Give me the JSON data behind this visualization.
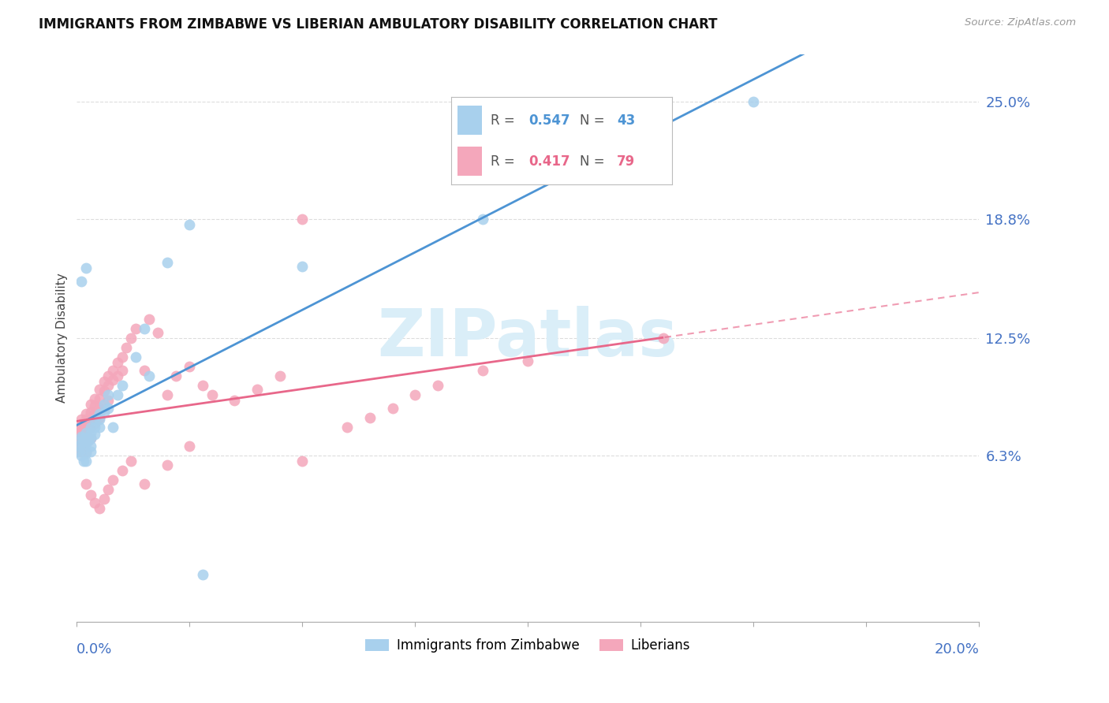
{
  "title": "IMMIGRANTS FROM ZIMBABWE VS LIBERIAN AMBULATORY DISABILITY CORRELATION CHART",
  "source": "Source: ZipAtlas.com",
  "ylabel": "Ambulatory Disability",
  "legend_blue_r": "0.547",
  "legend_blue_n": "43",
  "legend_pink_r": "0.417",
  "legend_pink_n": "79",
  "legend_label_blue": "Immigrants from Zimbabwe",
  "legend_label_pink": "Liberians",
  "blue_color": "#a8d0ed",
  "pink_color": "#f4a7bb",
  "blue_line_color": "#4d94d4",
  "pink_line_color": "#e8678a",
  "watermark_color": "#daeef8",
  "grid_color": "#dddddd",
  "tick_color": "#4472c4",
  "xmin": 0.0,
  "xmax": 0.2,
  "ymin": -0.025,
  "ymax": 0.275,
  "yticks": [
    0.063,
    0.125,
    0.188,
    0.25
  ],
  "ytick_labels": [
    "6.3%",
    "12.5%",
    "18.8%",
    "25.0%"
  ],
  "blue_x": [
    0.0003,
    0.0005,
    0.001,
    0.001,
    0.001,
    0.0012,
    0.0015,
    0.0015,
    0.002,
    0.002,
    0.002,
    0.002,
    0.002,
    0.0025,
    0.003,
    0.003,
    0.003,
    0.003,
    0.003,
    0.004,
    0.004,
    0.004,
    0.005,
    0.005,
    0.005,
    0.006,
    0.006,
    0.007,
    0.007,
    0.008,
    0.009,
    0.01,
    0.013,
    0.015,
    0.016,
    0.02,
    0.025,
    0.028,
    0.002,
    0.001,
    0.05,
    0.09,
    0.15
  ],
  "blue_y": [
    0.065,
    0.068,
    0.073,
    0.07,
    0.063,
    0.072,
    0.067,
    0.06,
    0.075,
    0.072,
    0.069,
    0.064,
    0.06,
    0.071,
    0.078,
    0.075,
    0.072,
    0.068,
    0.065,
    0.082,
    0.078,
    0.074,
    0.085,
    0.082,
    0.078,
    0.09,
    0.086,
    0.095,
    0.088,
    0.078,
    0.095,
    0.1,
    0.115,
    0.13,
    0.105,
    0.165,
    0.185,
    0.0,
    0.162,
    0.155,
    0.163,
    0.188,
    0.25
  ],
  "pink_x": [
    0.0002,
    0.0004,
    0.0005,
    0.0006,
    0.001,
    0.001,
    0.001,
    0.001,
    0.001,
    0.0012,
    0.0015,
    0.002,
    0.002,
    0.002,
    0.002,
    0.002,
    0.002,
    0.0025,
    0.003,
    0.003,
    0.003,
    0.003,
    0.003,
    0.004,
    0.004,
    0.004,
    0.004,
    0.005,
    0.005,
    0.005,
    0.005,
    0.006,
    0.006,
    0.006,
    0.007,
    0.007,
    0.007,
    0.008,
    0.008,
    0.009,
    0.009,
    0.01,
    0.01,
    0.011,
    0.012,
    0.013,
    0.015,
    0.016,
    0.018,
    0.02,
    0.022,
    0.025,
    0.028,
    0.03,
    0.035,
    0.04,
    0.045,
    0.05,
    0.06,
    0.065,
    0.07,
    0.075,
    0.08,
    0.09,
    0.1,
    0.13,
    0.002,
    0.003,
    0.004,
    0.005,
    0.006,
    0.007,
    0.008,
    0.01,
    0.012,
    0.015,
    0.02,
    0.025,
    0.05
  ],
  "pink_y": [
    0.068,
    0.072,
    0.075,
    0.078,
    0.082,
    0.078,
    0.075,
    0.07,
    0.065,
    0.08,
    0.076,
    0.085,
    0.082,
    0.078,
    0.074,
    0.07,
    0.065,
    0.08,
    0.09,
    0.086,
    0.082,
    0.078,
    0.072,
    0.093,
    0.089,
    0.085,
    0.08,
    0.098,
    0.093,
    0.088,
    0.083,
    0.102,
    0.097,
    0.088,
    0.105,
    0.1,
    0.092,
    0.108,
    0.103,
    0.112,
    0.105,
    0.115,
    0.108,
    0.12,
    0.125,
    0.13,
    0.108,
    0.135,
    0.128,
    0.095,
    0.105,
    0.11,
    0.1,
    0.095,
    0.092,
    0.098,
    0.105,
    0.06,
    0.078,
    0.083,
    0.088,
    0.095,
    0.1,
    0.108,
    0.113,
    0.125,
    0.048,
    0.042,
    0.038,
    0.035,
    0.04,
    0.045,
    0.05,
    0.055,
    0.06,
    0.048,
    0.058,
    0.068,
    0.188
  ]
}
